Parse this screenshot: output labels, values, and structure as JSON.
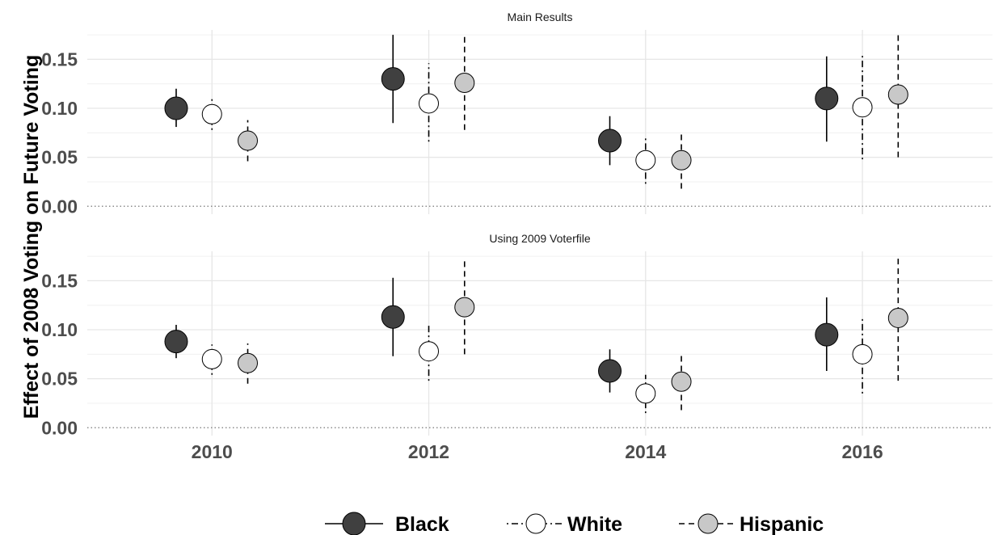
{
  "chart_data": {
    "type": "scatter",
    "subtype": "point-range",
    "ylabel": "Effect of 2008 Voting on Future Voting",
    "xlabel": "",
    "x_ticks": [
      "2010",
      "2012",
      "2014",
      "2016"
    ],
    "x_categories": [
      2010,
      2012,
      2014,
      2016
    ],
    "xlim": [
      2008.85,
      2017.2
    ],
    "ylim": [
      -0.008,
      0.18
    ],
    "y_ticks": [
      "0.00",
      "0.05",
      "0.10",
      "0.15"
    ],
    "y_tick_values": [
      0,
      0.05,
      0.1,
      0.15
    ],
    "grid": true,
    "legend_position": "bottom",
    "series_style": [
      {
        "name": "Black",
        "fill": "#404040",
        "stroke": "#000000",
        "dash": ""
      },
      {
        "name": "White",
        "fill": "#ffffff",
        "stroke": "#000000",
        "dash": "2,4,8,4"
      },
      {
        "name": "Hispanic",
        "fill": "#c8c8c8",
        "stroke": "#000000",
        "dash": "7,5"
      }
    ],
    "panels": [
      {
        "title": "Main Results",
        "series": [
          {
            "name": "Black",
            "x": [
              2010,
              2012,
              2014,
              2016
            ],
            "values": [
              0.1,
              0.13,
              0.067,
              0.11
            ],
            "lower": [
              0.081,
              0.085,
              0.042,
              0.066
            ],
            "upper": [
              0.12,
              0.175,
              0.092,
              0.153
            ]
          },
          {
            "name": "White",
            "x": [
              2010,
              2012,
              2014,
              2016
            ],
            "values": [
              0.094,
              0.105,
              0.047,
              0.101
            ],
            "lower": [
              0.078,
              0.066,
              0.023,
              0.048
            ],
            "upper": [
              0.11,
              0.146,
              0.071,
              0.154
            ]
          },
          {
            "name": "Hispanic",
            "x": [
              2010,
              2012,
              2014,
              2016
            ],
            "values": [
              0.067,
              0.126,
              0.047,
              0.114
            ],
            "lower": [
              0.046,
              0.078,
              0.018,
              0.05
            ],
            "upper": [
              0.088,
              0.176,
              0.077,
              0.178
            ]
          }
        ]
      },
      {
        "title": "Using 2009 Voterfile",
        "series": [
          {
            "name": "Black",
            "x": [
              2010,
              2012,
              2014,
              2016
            ],
            "values": [
              0.088,
              0.113,
              0.058,
              0.095
            ],
            "lower": [
              0.071,
              0.073,
              0.036,
              0.058
            ],
            "upper": [
              0.105,
              0.153,
              0.08,
              0.133
            ]
          },
          {
            "name": "White",
            "x": [
              2010,
              2012,
              2014,
              2016
            ],
            "values": [
              0.07,
              0.078,
              0.035,
              0.075
            ],
            "lower": [
              0.054,
              0.048,
              0.015,
              0.035
            ],
            "upper": [
              0.085,
              0.107,
              0.054,
              0.114
            ]
          },
          {
            "name": "Hispanic",
            "x": [
              2010,
              2012,
              2014,
              2016
            ],
            "values": [
              0.066,
              0.123,
              0.047,
              0.112
            ],
            "lower": [
              0.045,
              0.075,
              0.018,
              0.048
            ],
            "upper": [
              0.086,
              0.172,
              0.076,
              0.176
            ]
          }
        ]
      }
    ]
  }
}
